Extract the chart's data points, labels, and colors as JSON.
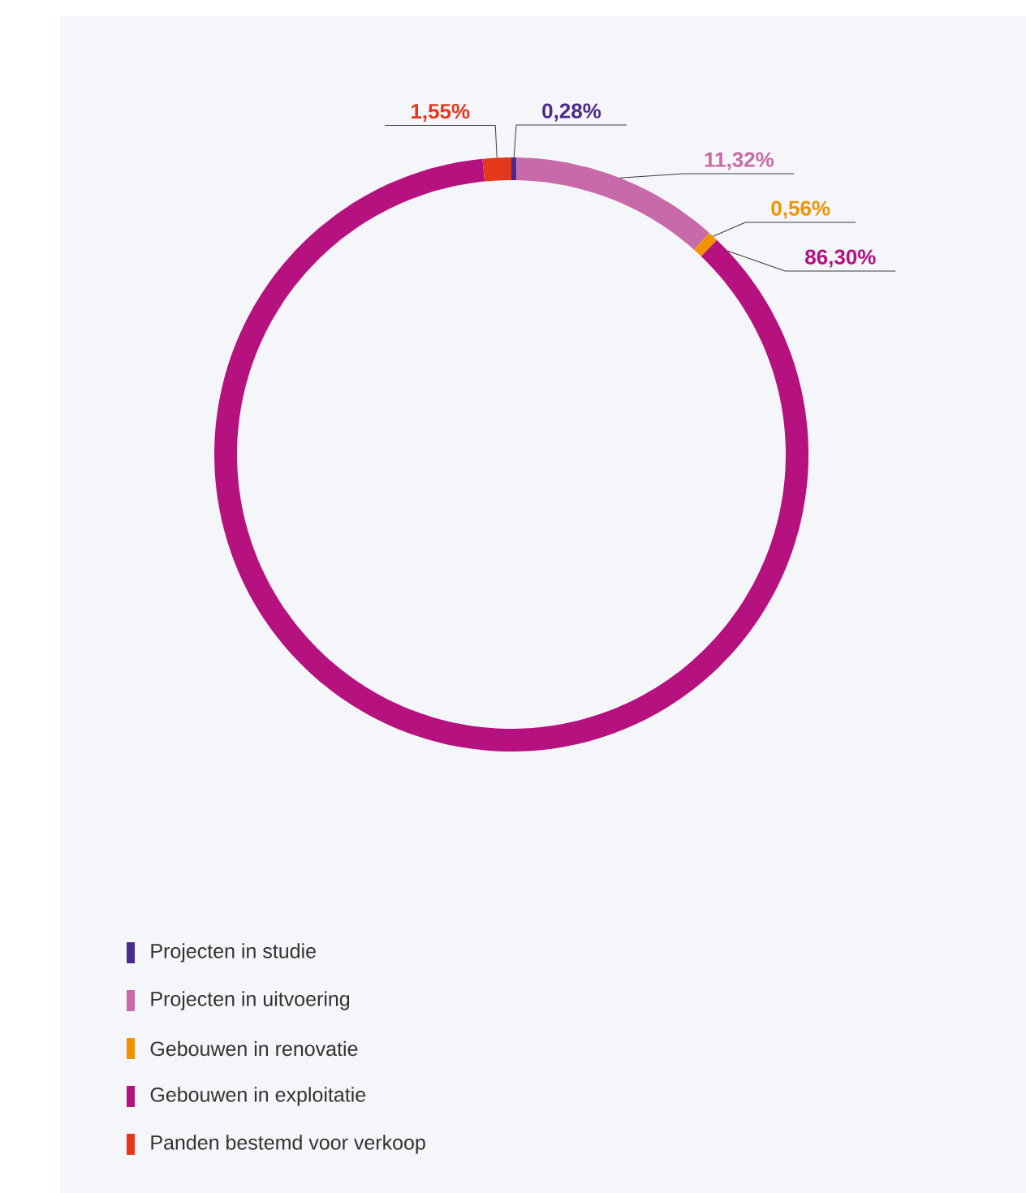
{
  "chart_data": {
    "type": "donut",
    "categories": [
      "Projecten in studie",
      "Projecten in uitvoering",
      "Gebouwen in renovatie",
      "Gebouwen in exploitatie",
      "Panden bestemd voor verkoop"
    ],
    "values": [
      0.28,
      11.32,
      0.56,
      86.3,
      1.55
    ],
    "value_labels": [
      "0,28%",
      "11,32%",
      "0,56%",
      "86,30%",
      "1,55%"
    ],
    "colors": [
      "#4a2a8c",
      "#c86aa9",
      "#f39200",
      "#b5127f",
      "#e5381b"
    ],
    "legend": "bottom left"
  }
}
